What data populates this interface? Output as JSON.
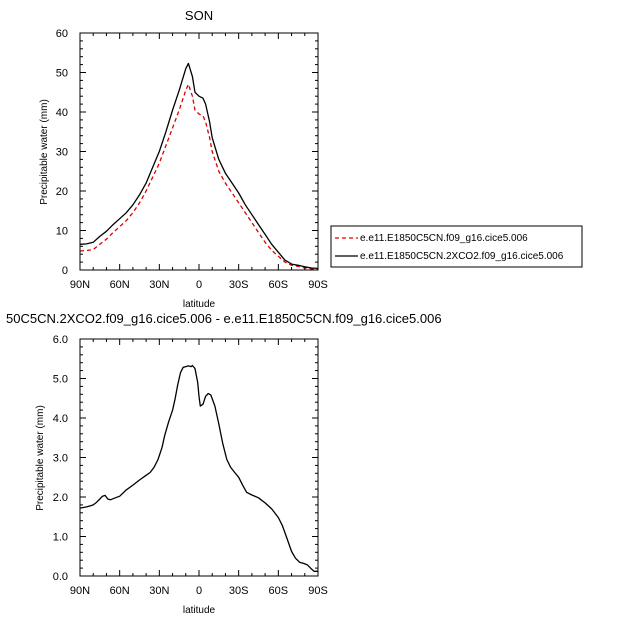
{
  "chart_data": [
    {
      "type": "line",
      "title": "SON",
      "xlabel": "latitude",
      "ylabel": "Precipitable water (mm)",
      "xlim": [
        90,
        -90
      ],
      "ylim": [
        0,
        60
      ],
      "x_ticks": [
        90,
        60,
        30,
        0,
        -30,
        -60,
        -90
      ],
      "x_tick_labels": [
        "90N",
        "60N",
        "30N",
        "0",
        "30S",
        "60S",
        "90S"
      ],
      "y_ticks": [
        0,
        10,
        20,
        30,
        40,
        50,
        60
      ],
      "y_tick_labels": [
        "0",
        "10",
        "20",
        "30",
        "40",
        "50",
        "60"
      ],
      "grid": false,
      "legend_position": "right",
      "series": [
        {
          "name": "e.e11.E1850C5CN.f09_g16.cice5.006",
          "color": "#dd0000",
          "dash": "dashed",
          "x": [
            90,
            85,
            80,
            75,
            70,
            65,
            60,
            55,
            50,
            45,
            40,
            35,
            30,
            25,
            20,
            15,
            10,
            8,
            5,
            3,
            0,
            -3,
            -5,
            -8,
            -10,
            -15,
            -20,
            -25,
            -30,
            -35,
            -40,
            -45,
            -50,
            -55,
            -60,
            -65,
            -70,
            -75,
            -80,
            -85,
            -90
          ],
          "values": [
            4.8,
            4.9,
            5.2,
            6.5,
            7.8,
            9.5,
            11.0,
            12.5,
            14.5,
            17.0,
            20.0,
            23.5,
            27.0,
            31.5,
            36.0,
            40.5,
            45.5,
            47.0,
            44.0,
            40.5,
            39.5,
            39.0,
            37.5,
            33.5,
            30.0,
            25.0,
            22.0,
            19.5,
            17.0,
            14.5,
            12.0,
            9.5,
            7.0,
            5.0,
            3.5,
            2.0,
            1.2,
            0.9,
            0.5,
            0.3,
            0.3
          ]
        },
        {
          "name": "e.e11.E1850C5CN.2XCO2.f09_g16.cice5.006",
          "color": "#000000",
          "dash": "solid",
          "x": [
            90,
            85,
            80,
            75,
            70,
            65,
            60,
            55,
            50,
            45,
            40,
            35,
            30,
            25,
            20,
            15,
            10,
            8,
            5,
            3,
            0,
            -3,
            -5,
            -8,
            -10,
            -15,
            -20,
            -25,
            -30,
            -35,
            -40,
            -45,
            -50,
            -55,
            -60,
            -65,
            -70,
            -75,
            -80,
            -85,
            -90
          ],
          "values": [
            6.5,
            6.6,
            7.0,
            8.5,
            9.8,
            11.5,
            13.0,
            14.5,
            16.5,
            19.0,
            22.0,
            26.0,
            30.0,
            35.0,
            40.5,
            45.5,
            51.0,
            52.3,
            49.0,
            45.0,
            44.0,
            43.5,
            42.0,
            37.5,
            33.5,
            28.0,
            24.5,
            22.0,
            19.5,
            16.5,
            14.0,
            11.5,
            9.0,
            6.5,
            4.5,
            2.5,
            1.5,
            1.2,
            0.8,
            0.5,
            0.4
          ]
        }
      ]
    },
    {
      "type": "line",
      "title": "50C5CN.2XCO2.f09_g16.cice5.006 - e.e11.E1850C5CN.f09_g16.cice5.006",
      "xlabel": "latitude",
      "ylabel": "Precipitable water (mm)",
      "xlim": [
        90,
        -90
      ],
      "ylim": [
        0,
        6
      ],
      "x_ticks": [
        90,
        60,
        30,
        0,
        -30,
        -60,
        -90
      ],
      "x_tick_labels": [
        "90N",
        "60N",
        "30N",
        "0",
        "30S",
        "60S",
        "90S"
      ],
      "y_ticks": [
        0,
        1,
        2,
        3,
        4,
        5,
        6
      ],
      "y_tick_labels": [
        "0.0",
        "1.0",
        "2.0",
        "3.0",
        "4.0",
        "5.0",
        "6.0"
      ],
      "grid": false,
      "series": [
        {
          "color": "#000000",
          "dash": "solid",
          "x": [
            90,
            85,
            82,
            80,
            78,
            75,
            73,
            71,
            69,
            67,
            64,
            60,
            55,
            50,
            45,
            40,
            37,
            34,
            31,
            28,
            26,
            23,
            20,
            18,
            16,
            14,
            12,
            10,
            8,
            6,
            5,
            3,
            1,
            0,
            -1,
            -3,
            -5,
            -7,
            -9,
            -12,
            -15,
            -18,
            -21,
            -24,
            -27,
            -30,
            -33,
            -36,
            -40,
            -45,
            -50,
            -55,
            -60,
            -63,
            -66,
            -70,
            -73,
            -76,
            -79,
            -82,
            -85,
            -87,
            -90
          ],
          "values": [
            1.72,
            1.75,
            1.78,
            1.8,
            1.85,
            1.95,
            2.02,
            2.04,
            1.95,
            1.93,
            1.97,
            2.02,
            2.18,
            2.3,
            2.43,
            2.55,
            2.62,
            2.75,
            2.95,
            3.25,
            3.55,
            3.9,
            4.2,
            4.5,
            4.85,
            5.15,
            5.28,
            5.3,
            5.32,
            5.3,
            5.33,
            5.25,
            4.9,
            4.55,
            4.3,
            4.35,
            4.55,
            4.62,
            4.58,
            4.3,
            3.85,
            3.35,
            2.95,
            2.75,
            2.62,
            2.5,
            2.3,
            2.12,
            2.05,
            1.98,
            1.85,
            1.7,
            1.48,
            1.28,
            1.0,
            0.62,
            0.45,
            0.35,
            0.32,
            0.28,
            0.18,
            0.12,
            0.12
          ]
        }
      ]
    }
  ]
}
